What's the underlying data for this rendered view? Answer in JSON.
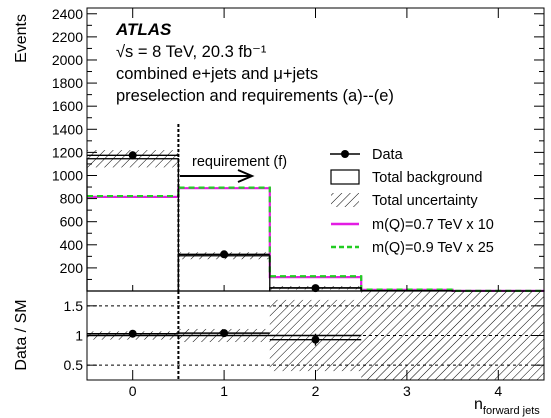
{
  "chart_data": {
    "type": "histogram",
    "experiment": "ATLAS",
    "info_lines": [
      "√s = 8 TeV, 20.3 fb⁻¹",
      "combined e+jets and μ+jets",
      "preselection and requirements (a)--(e)"
    ],
    "annotation": "requirement (f)",
    "cut_position": 0.5,
    "x_label": "n",
    "x_label_sub": "forward jets",
    "top_ylabel": "Events",
    "bottom_ylabel": "Data / SM",
    "xlim": [
      -0.5,
      4.5
    ],
    "top_ylim": [
      0,
      2450
    ],
    "bottom_ylim": [
      0.25,
      1.75
    ],
    "x_ticks": [
      "0",
      "1",
      "2",
      "3",
      "4"
    ],
    "top_y_ticks": [
      "200",
      "400",
      "600",
      "800",
      "1000",
      "1200",
      "1400",
      "1600",
      "1800",
      "2000",
      "2200",
      "2400"
    ],
    "bottom_y_ticks": [
      "0.5",
      "1",
      "1.5"
    ],
    "bins": [
      0,
      1,
      2,
      3,
      4
    ],
    "data": {
      "name": "Data",
      "values": [
        1175,
        318,
        25,
        0,
        0
      ],
      "errors": [
        34,
        18,
        5,
        0,
        0
      ]
    },
    "total_background": {
      "name": "Total background",
      "values": [
        1145,
        305,
        28,
        3,
        1
      ],
      "uncertainty": [
        75,
        30,
        15,
        2,
        1
      ]
    },
    "uncertainty_name": "Total uncertainty",
    "signals": [
      {
        "name": "m(Q)=0.7 TeV x 10",
        "color": "#e31ce3",
        "style": "solid",
        "values": [
          815,
          890,
          120,
          10,
          1
        ]
      },
      {
        "name": "m(Q)=0.9 TeV x 25",
        "color": "#22cc22",
        "style": "dashed",
        "values": [
          822,
          895,
          128,
          12,
          1
        ]
      }
    ],
    "ratio": {
      "values": [
        1.03,
        1.04,
        0.93,
        null,
        null
      ],
      "errors": [
        0.05,
        0.06,
        0.1,
        0,
        0
      ],
      "band_halfwidth": [
        0.07,
        0.11,
        0.6,
        0.8,
        0.8
      ]
    },
    "ratio_reference_lines": [
      0.5,
      1.0,
      1.5
    ]
  }
}
